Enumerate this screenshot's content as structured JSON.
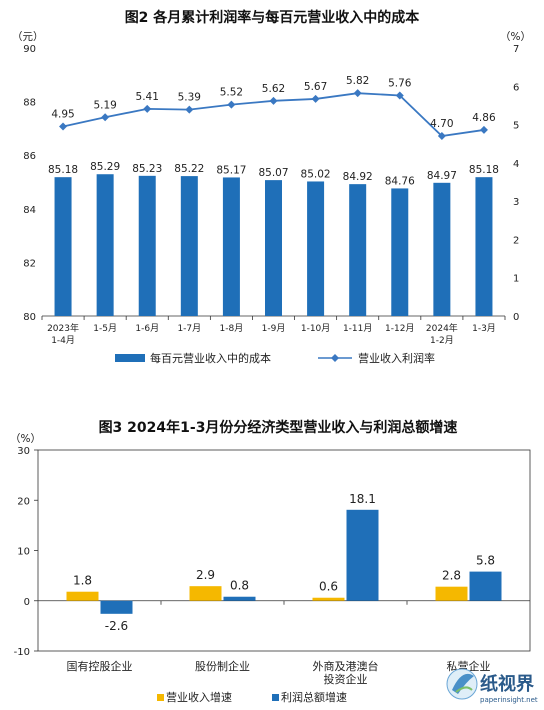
{
  "watermark": {
    "text": "纸视界",
    "sub": "paperinsight.net",
    "icon": "paperinsight-logo-icon"
  },
  "chart_data": [
    {
      "type": "bar+line",
      "title": "图2 各月累计利润率与每百元营业收入中的成本",
      "left_unit": "（元）",
      "right_unit": "（%）",
      "categories": [
        [
          "2023年",
          "1-4月"
        ],
        [
          "1-5月"
        ],
        [
          "1-6月"
        ],
        [
          "1-7月"
        ],
        [
          "1-8月"
        ],
        [
          "1-9月"
        ],
        [
          "1-10月"
        ],
        [
          "1-11月"
        ],
        [
          "1-12月"
        ],
        [
          "2024年",
          "1-2月"
        ],
        [
          "1-3月"
        ]
      ],
      "left_axis": {
        "min": 80,
        "max": 90,
        "ticks": [
          80,
          82,
          84,
          86,
          88,
          90
        ]
      },
      "right_axis": {
        "min": 0,
        "max": 7,
        "ticks": [
          0,
          1,
          2,
          3,
          4,
          5,
          6,
          7
        ]
      },
      "series": [
        {
          "name": "每百元营业收入中的成本",
          "kind": "bar",
          "axis": "left",
          "color": "#1f6fb8",
          "values": [
            85.18,
            85.29,
            85.23,
            85.22,
            85.17,
            85.07,
            85.02,
            84.92,
            84.76,
            84.97,
            85.18
          ],
          "labels": [
            "85.18",
            "85.29",
            "85.23",
            "85.22",
            "85.17",
            "85.07",
            "85.02",
            "84.92",
            "84.76",
            "84.97",
            "85.18"
          ]
        },
        {
          "name": "营业收入利润率",
          "kind": "line",
          "axis": "right",
          "color": "#3a78c2",
          "values": [
            4.95,
            5.19,
            5.41,
            5.39,
            5.52,
            5.62,
            5.67,
            5.82,
            5.76,
            4.7,
            4.86
          ],
          "labels": [
            "4.95",
            "5.19",
            "5.41",
            "5.39",
            "5.52",
            "5.62",
            "5.67",
            "5.82",
            "5.76",
            "4.70",
            "4.86"
          ]
        }
      ]
    },
    {
      "type": "bar",
      "title": "图3 2024年1-3月份分经济类型营业收入与利润总额增速",
      "unit": "（%）",
      "categories": [
        [
          "国有控股企业"
        ],
        [
          "股份制企业"
        ],
        [
          "外商及港澳台",
          "投资企业"
        ],
        [
          "私营企业"
        ]
      ],
      "y_axis": {
        "min": -10,
        "max": 30,
        "ticks": [
          -10,
          0,
          10,
          20,
          30
        ]
      },
      "series": [
        {
          "name": "营业收入增速",
          "color": "#f5b800",
          "values": [
            1.8,
            2.9,
            0.6,
            2.8
          ],
          "labels": [
            "1.8",
            "2.9",
            "0.6",
            "2.8"
          ]
        },
        {
          "name": "利润总额增速",
          "color": "#1f6fb8",
          "values": [
            -2.6,
            0.8,
            18.1,
            5.8
          ],
          "labels": [
            "-2.6",
            "0.8",
            "18.1",
            "5.8"
          ]
        }
      ]
    }
  ]
}
